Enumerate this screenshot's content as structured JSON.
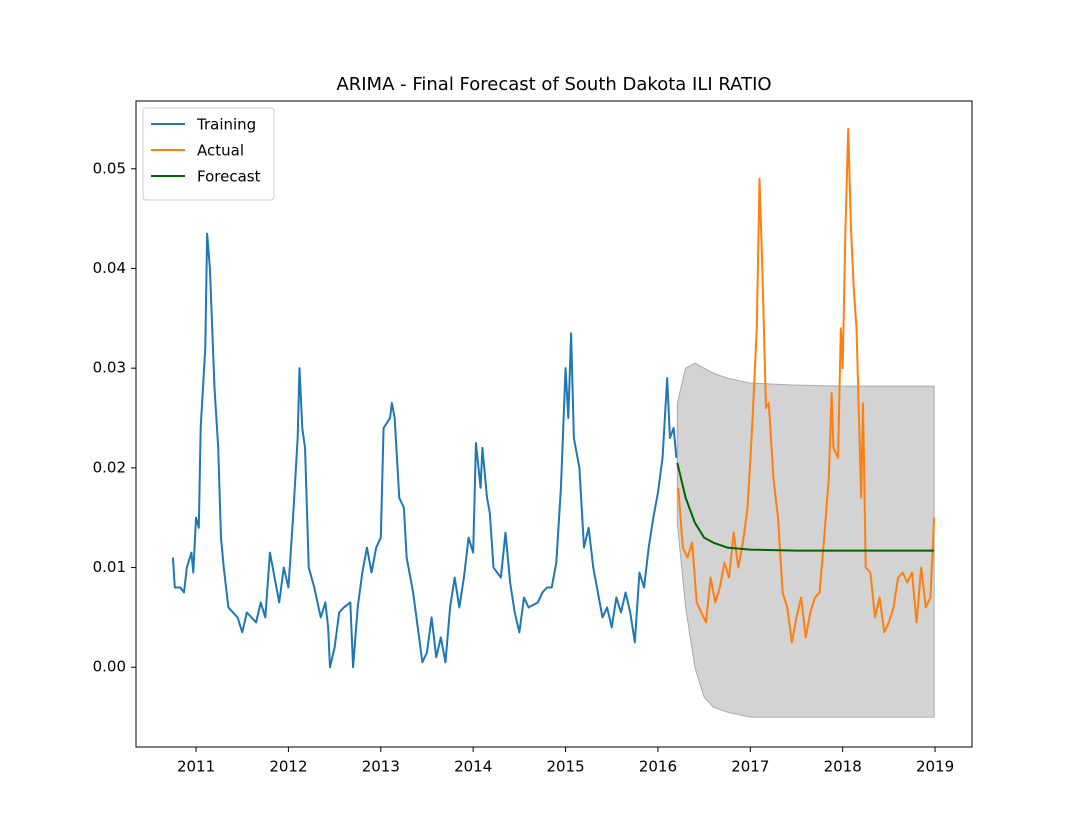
{
  "chart_data": {
    "type": "line",
    "title": "ARIMA - Final Forecast of South Dakota ILI RATIO",
    "xlim": [
      2010.35,
      2019.4
    ],
    "xticks": [
      2011,
      2012,
      2013,
      2014,
      2015,
      2016,
      2017,
      2018,
      2019
    ],
    "ylim": [
      -0.008,
      0.0568
    ],
    "yticks": [
      {
        "value": 0,
        "label": "0.00"
      },
      {
        "value": 0.01,
        "label": "0.01"
      },
      {
        "value": 0.02,
        "label": "0.02"
      },
      {
        "value": 0.03,
        "label": "0.03"
      },
      {
        "value": 0.04,
        "label": "0.04"
      },
      {
        "value": 0.05,
        "label": "0.05"
      }
    ],
    "legend": "upper left",
    "series": [
      {
        "name": "Training",
        "color": "#1f77b4",
        "x": [
          2010.75,
          2010.77,
          2010.83,
          2010.87,
          2010.9,
          2010.95,
          2010.97,
          2011.0,
          2011.03,
          2011.05,
          2011.1,
          2011.12,
          2011.15,
          2011.2,
          2011.24,
          2011.27,
          2011.3,
          2011.35,
          2011.45,
          2011.5,
          2011.55,
          2011.65,
          2011.7,
          2011.75,
          2011.8,
          2011.85,
          2011.9,
          2011.95,
          2012.0,
          2012.05,
          2012.1,
          2012.12,
          2012.15,
          2012.18,
          2012.22,
          2012.28,
          2012.35,
          2012.4,
          2012.43,
          2012.45,
          2012.5,
          2012.55,
          2012.6,
          2012.67,
          2012.7,
          2012.75,
          2012.8,
          2012.85,
          2012.9,
          2012.95,
          2013.0,
          2013.03,
          2013.1,
          2013.12,
          2013.15,
          2013.2,
          2013.25,
          2013.28,
          2013.35,
          2013.4,
          2013.45,
          2013.5,
          2013.55,
          2013.6,
          2013.65,
          2013.7,
          2013.75,
          2013.8,
          2013.85,
          2013.9,
          2013.95,
          2014.0,
          2014.03,
          2014.08,
          2014.1,
          2014.15,
          2014.18,
          2014.22,
          2014.3,
          2014.35,
          2014.4,
          2014.45,
          2014.5,
          2014.55,
          2014.6,
          2014.7,
          2014.75,
          2014.8,
          2014.85,
          2014.9,
          2014.95,
          2015.0,
          2015.03,
          2015.06,
          2015.09,
          2015.12,
          2015.15,
          2015.2,
          2015.25,
          2015.3,
          2015.4,
          2015.45,
          2015.5,
          2015.55,
          2015.6,
          2015.65,
          2015.7,
          2015.75,
          2015.8,
          2015.85,
          2015.9,
          2015.95,
          2016.0,
          2016.05,
          2016.1,
          2016.13,
          2016.17,
          2016.2
        ],
        "values": [
          0.011,
          0.008,
          0.008,
          0.0075,
          0.01,
          0.0115,
          0.0095,
          0.015,
          0.014,
          0.024,
          0.032,
          0.0435,
          0.04,
          0.028,
          0.022,
          0.013,
          0.01,
          0.006,
          0.005,
          0.0035,
          0.0055,
          0.0045,
          0.0065,
          0.005,
          0.0115,
          0.009,
          0.0065,
          0.01,
          0.008,
          0.015,
          0.023,
          0.03,
          0.024,
          0.022,
          0.01,
          0.008,
          0.005,
          0.0065,
          0.004,
          0,
          0.002,
          0.0055,
          0.006,
          0.0065,
          0,
          0.006,
          0.0095,
          0.012,
          0.0095,
          0.012,
          0.013,
          0.024,
          0.025,
          0.0265,
          0.025,
          0.017,
          0.016,
          0.011,
          0.0075,
          0.004,
          0.0005,
          0.0015,
          0.005,
          0.001,
          0.003,
          0.0005,
          0.006,
          0.009,
          0.006,
          0.009,
          0.013,
          0.0115,
          0.0225,
          0.018,
          0.022,
          0.017,
          0.0155,
          0.01,
          0.009,
          0.0135,
          0.0085,
          0.0055,
          0.0035,
          0.007,
          0.006,
          0.0065,
          0.0075,
          0.008,
          0.008,
          0.0105,
          0.018,
          0.03,
          0.025,
          0.0335,
          0.023,
          0.0215,
          0.02,
          0.012,
          0.014,
          0.01,
          0.005,
          0.006,
          0.004,
          0.007,
          0.0055,
          0.0075,
          0.0055,
          0.0025,
          0.0095,
          0.008,
          0.012,
          0.015,
          0.0175,
          0.021,
          0.029,
          0.023,
          0.024,
          0.021
        ]
      },
      {
        "name": "Actual",
        "color": "#ff7f0e",
        "x": [
          2016.22,
          2016.27,
          2016.32,
          2016.37,
          2016.42,
          2016.47,
          2016.52,
          2016.57,
          2016.62,
          2016.67,
          2016.72,
          2016.77,
          2016.82,
          2016.87,
          2016.92,
          2016.97,
          2017.02,
          2017.07,
          2017.1,
          2017.13,
          2017.17,
          2017.2,
          2017.25,
          2017.3,
          2017.35,
          2017.4,
          2017.45,
          2017.5,
          2017.55,
          2017.6,
          2017.65,
          2017.7,
          2017.75,
          2017.8,
          2017.85,
          2017.88,
          2017.9,
          2017.95,
          2017.98,
          2018.0,
          2018.03,
          2018.06,
          2018.09,
          2018.12,
          2018.15,
          2018.2,
          2018.22,
          2018.25,
          2018.3,
          2018.35,
          2018.4,
          2018.45,
          2018.5,
          2018.55,
          2018.6,
          2018.65,
          2018.7,
          2018.75,
          2018.8,
          2018.85,
          2018.9,
          2018.95,
          2018.99
        ],
        "values": [
          0.018,
          0.012,
          0.011,
          0.0125,
          0.0065,
          0.0055,
          0.0045,
          0.009,
          0.0065,
          0.008,
          0.0105,
          0.009,
          0.0135,
          0.01,
          0.0125,
          0.016,
          0.024,
          0.034,
          0.049,
          0.04,
          0.026,
          0.0265,
          0.019,
          0.015,
          0.0075,
          0.006,
          0.0025,
          0.005,
          0.007,
          0.003,
          0.0055,
          0.007,
          0.0075,
          0.013,
          0.019,
          0.0275,
          0.022,
          0.021,
          0.034,
          0.03,
          0.044,
          0.054,
          0.044,
          0.038,
          0.034,
          0.017,
          0.0265,
          0.01,
          0.0095,
          0.005,
          0.007,
          0.0035,
          0.0045,
          0.006,
          0.009,
          0.0095,
          0.0085,
          0.0095,
          0.0045,
          0.01,
          0.006,
          0.007,
          0.015
        ]
      },
      {
        "name": "Forecast",
        "color": "#006400",
        "x": [
          2016.21,
          2016.3,
          2016.4,
          2016.5,
          2016.6,
          2016.75,
          2017.0,
          2017.5,
          2018.0,
          2018.99
        ],
        "values": [
          0.0205,
          0.017,
          0.0145,
          0.013,
          0.0125,
          0.012,
          0.0118,
          0.0117,
          0.0117,
          0.0117
        ]
      }
    ],
    "confidence_band": {
      "color": "#d3d3d3",
      "x": [
        2016.21,
        2016.3,
        2016.4,
        2016.5,
        2016.6,
        2016.75,
        2017.0,
        2017.5,
        2018.0,
        2018.99
      ],
      "upper": [
        0.0265,
        0.03,
        0.0305,
        0.03,
        0.0295,
        0.029,
        0.0285,
        0.0283,
        0.0282,
        0.0282
      ],
      "lower": [
        0.0145,
        0.006,
        0,
        -0.003,
        -0.004,
        -0.0045,
        -0.005,
        -0.005,
        -0.005,
        -0.005
      ]
    }
  }
}
